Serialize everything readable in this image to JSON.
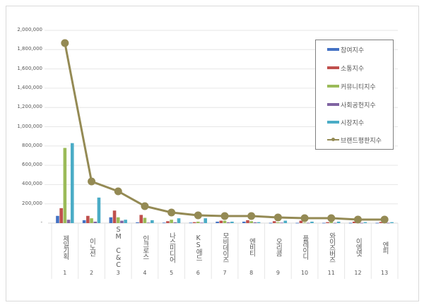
{
  "chart_data": {
    "type": "bar",
    "title": "",
    "xlabel": "",
    "ylabel": "",
    "ylim": [
      0,
      2000000
    ],
    "yticks": [
      "-",
      "200,000",
      "400,000",
      "600,000",
      "800,000",
      "1,000,000",
      "1,200,000",
      "1,400,000",
      "1,600,000",
      "1,800,000",
      "2,000,000"
    ],
    "grid": true,
    "legend_position": "right-inside",
    "categories": [
      "제일기획",
      "이노션",
      "SM C&C",
      "인크로스",
      "나스미디어",
      "KS애드",
      "모비데이즈",
      "엔비티",
      "오리콤",
      "플레이디",
      "와이즈버즈",
      "이엠넷",
      "엔피"
    ],
    "category_numbers": [
      "1",
      "2",
      "3",
      "4",
      "5",
      "6",
      "7",
      "8",
      "9",
      "10",
      "11",
      "12",
      "13"
    ],
    "series": [
      {
        "name": "참여지수",
        "type": "bar",
        "color": "#4472c4",
        "values": [
          75000,
          30000,
          60000,
          8000,
          5000,
          5000,
          15000,
          15000,
          3000,
          3000,
          3000,
          3000,
          3000
        ]
      },
      {
        "name": "소통지수",
        "type": "bar",
        "color": "#c0504d",
        "values": [
          155000,
          75000,
          130000,
          85000,
          20000,
          10000,
          25000,
          30000,
          20000,
          25000,
          10000,
          15000,
          12000
        ]
      },
      {
        "name": "커뮤니티지수",
        "type": "bar",
        "color": "#9bbb59",
        "values": [
          780000,
          50000,
          60000,
          55000,
          35000,
          15000,
          25000,
          20000,
          8000,
          5000,
          15000,
          8000,
          10000
        ]
      },
      {
        "name": "사회공헌지수",
        "type": "bar",
        "color": "#8064a2",
        "values": [
          35000,
          15000,
          25000,
          5000,
          8000,
          5000,
          8000,
          8000,
          5000,
          3000,
          3000,
          3000,
          3000
        ]
      },
      {
        "name": "시장지수",
        "type": "bar",
        "color": "#4bacc6",
        "values": [
          830000,
          265000,
          35000,
          30000,
          50000,
          50000,
          15000,
          10000,
          25000,
          15000,
          15000,
          10000,
          10000
        ]
      },
      {
        "name": "브랜드평판지수",
        "type": "line",
        "color": "#948a54",
        "values": [
          1868000,
          432000,
          330000,
          176000,
          110000,
          81000,
          73000,
          73000,
          59000,
          51000,
          51000,
          37000,
          37000
        ]
      }
    ]
  }
}
